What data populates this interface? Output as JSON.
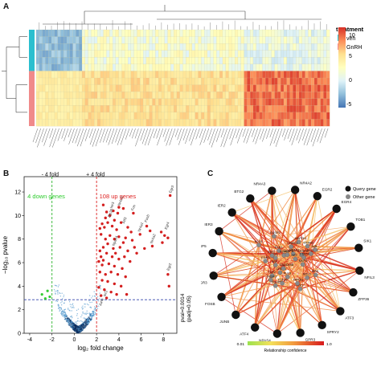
{
  "panels": {
    "a": {
      "letter": "A"
    },
    "b": {
      "letter": "B"
    },
    "c": {
      "letter": "C"
    }
  },
  "heatmap": {
    "legend_title": "treatment",
    "groups": [
      {
        "name": "veh",
        "color": "#2bbfcf"
      },
      {
        "name": "GnRH",
        "color": "#f08a8a"
      }
    ],
    "colorbar_ticks": [
      "10",
      "5",
      "0",
      "-5"
    ],
    "colorbar_colors": [
      "#d73027",
      "#fc8d59",
      "#fee090",
      "#ffffbf",
      "#e0f3f8",
      "#91bfdb",
      "#4575b4"
    ]
  },
  "chart_data": [
    {
      "type": "heatmap",
      "rows": {
        "veh": 6,
        "GnRH": 8
      },
      "columns": 96,
      "column_labels_legible": false,
      "value_range": [
        -7,
        11
      ],
      "note_colors": "veh rows mostly cooler, GnRH rows warmer with red block on right"
    },
    {
      "type": "scatter",
      "xlabel": "log₂ fold change",
      "ylabel": "−log₁₀ pvalue",
      "xticks": [
        -4,
        -2,
        0,
        2,
        4,
        6,
        8
      ],
      "yticks": [
        0,
        2,
        4,
        6,
        8,
        10,
        12
      ],
      "xlim": [
        -4.5,
        9.2
      ],
      "ylim": [
        0,
        13.3
      ],
      "vlines": [
        {
          "x": -2,
          "label": "- 4 fold",
          "color": "#2db52d"
        },
        {
          "x": 2,
          "label": "+ 4 fold",
          "color": "#dd2222"
        }
      ],
      "hline": {
        "y": 2.85,
        "label": "pval=0.0014\n(padj=0.05)",
        "color": "#3344aa"
      },
      "down_label": "4 down genes",
      "up_label": "108 up genes",
      "down_points": [
        [
          -2.4,
          3.6
        ],
        [
          -2.2,
          3.1
        ],
        [
          -2.9,
          3.3
        ],
        [
          -2.6,
          2.95
        ]
      ],
      "up_points": [
        [
          8.6,
          11.7
        ],
        [
          6.5,
          9.1
        ],
        [
          5.3,
          10.2
        ],
        [
          4.4,
          10.6
        ],
        [
          4.0,
          10.7
        ],
        [
          3.9,
          10.2
        ],
        [
          3.5,
          10.4
        ],
        [
          2.6,
          10.9
        ],
        [
          3.2,
          10.0
        ],
        [
          3.0,
          9.4
        ],
        [
          2.8,
          9.8
        ],
        [
          2.7,
          9.0
        ],
        [
          3.4,
          9.1
        ],
        [
          4.2,
          9.4
        ],
        [
          5.1,
          8.6
        ],
        [
          5.9,
          8.4
        ],
        [
          6.8,
          8.7
        ],
        [
          7.8,
          8.6
        ],
        [
          8.1,
          8.3
        ],
        [
          8.4,
          8.1
        ],
        [
          7.9,
          7.7
        ],
        [
          8.4,
          5.0
        ],
        [
          8.5,
          4.0
        ],
        [
          7.0,
          7.4
        ],
        [
          6.3,
          7.2
        ],
        [
          5.2,
          7.9
        ],
        [
          4.6,
          8.1
        ],
        [
          4.0,
          8.2
        ],
        [
          3.6,
          8.0
        ],
        [
          3.2,
          8.3
        ],
        [
          2.8,
          8.0
        ],
        [
          2.4,
          8.4
        ],
        [
          2.6,
          7.3
        ],
        [
          3.0,
          7.6
        ],
        [
          3.5,
          7.2
        ],
        [
          4.1,
          7.3
        ],
        [
          4.8,
          7.0
        ],
        [
          5.6,
          6.8
        ],
        [
          2.4,
          6.5
        ],
        [
          2.9,
          6.8
        ],
        [
          3.4,
          6.5
        ],
        [
          4.0,
          6.3
        ],
        [
          4.5,
          6.5
        ],
        [
          5.0,
          6.1
        ],
        [
          2.5,
          5.8
        ],
        [
          3.1,
          5.9
        ],
        [
          3.6,
          5.7
        ],
        [
          4.3,
          5.5
        ],
        [
          2.3,
          5.2
        ],
        [
          2.8,
          5.0
        ],
        [
          3.3,
          5.2
        ],
        [
          3.9,
          5.0
        ],
        [
          4.6,
          4.8
        ],
        [
          2.5,
          4.5
        ],
        [
          3.0,
          4.4
        ],
        [
          3.6,
          4.2
        ],
        [
          4.2,
          4.0
        ],
        [
          2.2,
          3.9
        ],
        [
          2.7,
          3.7
        ],
        [
          3.3,
          3.5
        ],
        [
          3.8,
          3.3
        ],
        [
          2.4,
          3.2
        ],
        [
          2.9,
          3.0
        ],
        [
          4.7,
          3.3
        ],
        [
          2.3,
          7.0
        ],
        [
          2.2,
          6.1
        ],
        [
          2.6,
          6.2
        ],
        [
          3.7,
          6.8
        ],
        [
          4.4,
          7.7
        ],
        [
          5.4,
          7.3
        ],
        [
          2.5,
          9.3
        ],
        [
          3.8,
          8.8
        ],
        [
          2.3,
          8.9
        ],
        [
          2.9,
          10.3
        ],
        [
          3.6,
          9.6
        ],
        [
          4.8,
          9.0
        ]
      ],
      "gene_labels": [
        {
          "text": "Egr3",
          "x": 8.7,
          "y": 11.9
        },
        {
          "text": "Egr4",
          "x": 8.3,
          "y": 8.8
        },
        {
          "text": "Egr2",
          "x": 8.5,
          "y": 5.3
        },
        {
          "text": "Fosb",
          "x": 6.5,
          "y": 9.4
        },
        {
          "text": "Fos",
          "x": 5.3,
          "y": 10.4
        },
        {
          "text": "Nr4a3",
          "x": 4.1,
          "y": 10.8
        },
        {
          "text": "Ier3",
          "x": 3.4,
          "y": 10.6
        },
        {
          "text": "Zfp36",
          "x": 3.2,
          "y": 9.8
        },
        {
          "text": "Atf3",
          "x": 4.5,
          "y": 9.3
        },
        {
          "text": "Nr4a1",
          "x": 5.9,
          "y": 8.6
        },
        {
          "text": "Nr4a2",
          "x": 7.0,
          "y": 7.6
        },
        {
          "text": "Npas4",
          "x": 3.6,
          "y": 7.4
        },
        {
          "text": "Junb",
          "x": 2.4,
          "y": 2.3
        },
        {
          "text": "Ier2",
          "x": 2.8,
          "y": 3.1
        }
      ]
    },
    {
      "type": "network",
      "legend": [
        {
          "label": "Query gene",
          "color": "#111111"
        },
        {
          "label": "Other gene",
          "color": "#888888"
        }
      ],
      "colorbar_label": "Relationship confidence",
      "colorbar_min": "0.01",
      "colorbar_max": "1.0",
      "outer_nodes": [
        "NR4A3",
        "NR4A2",
        "EGR2",
        "EGR4",
        "TOB1",
        "SIK1",
        "NFIL3",
        "ZFP36",
        "ATF3",
        "SPRY2",
        "GPR3",
        "NPAS4",
        "ATF4",
        "JUNB",
        "FOSB",
        "EGR3",
        "DUSP5",
        "IER3",
        "IER2",
        "BTG2"
      ],
      "inner_nodes": [
        "CREB1",
        "CRSP9",
        "ELK1",
        "CDKN1C",
        "TLR2",
        "SLC6A1",
        "DUSP1",
        "EGFR",
        "EPHB2",
        "NR4A1",
        "PLK3",
        "MAP2K1",
        "CREB3",
        "DUSP6",
        "BCL6",
        "EGR1",
        "KLF10",
        "MKP3",
        "GADD45B",
        "SRF",
        "JUN",
        "FOS",
        "ATF2",
        "NFKB1",
        "MYC",
        "CEBPB",
        "IER5",
        "DUSP2",
        "KLF4",
        "ARC"
      ]
    }
  ]
}
